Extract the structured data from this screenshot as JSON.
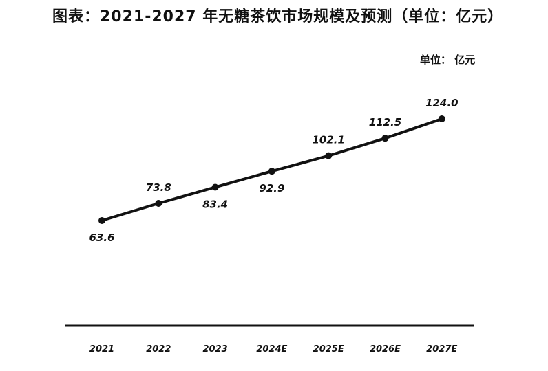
{
  "header": {
    "title": "图表：2021-2027 年无糖茶饮市场规模及预测（单位：亿元）",
    "unit_label": "单位： 亿元"
  },
  "colors": {
    "line": "#111111",
    "axis": "#111111",
    "background": "#ffffff"
  },
  "chart_data": {
    "type": "line",
    "title": "图表：2021-2027 年无糖茶饮市场规模及预测（单位：亿元）",
    "xlabel": "",
    "ylabel": "",
    "unit": "单位： 亿元",
    "categories": [
      "2021",
      "2022",
      "2023",
      "2024E",
      "2025E",
      "2026E",
      "2027E"
    ],
    "series": [
      {
        "values": [
          63.6,
          73.8,
          83.4,
          92.9,
          102.1,
          112.5,
          124.0
        ],
        "labels": [
          "63.6",
          "73.8",
          "83.4",
          "92.9",
          "102.1",
          "112.5",
          "124.0"
        ]
      }
    ],
    "label_positions": [
      "below",
      "above",
      "below",
      "below",
      "above",
      "above",
      "above"
    ],
    "ylim": [
      0,
      140
    ],
    "grid": false,
    "legend": "none",
    "y_axis_visible": false
  }
}
